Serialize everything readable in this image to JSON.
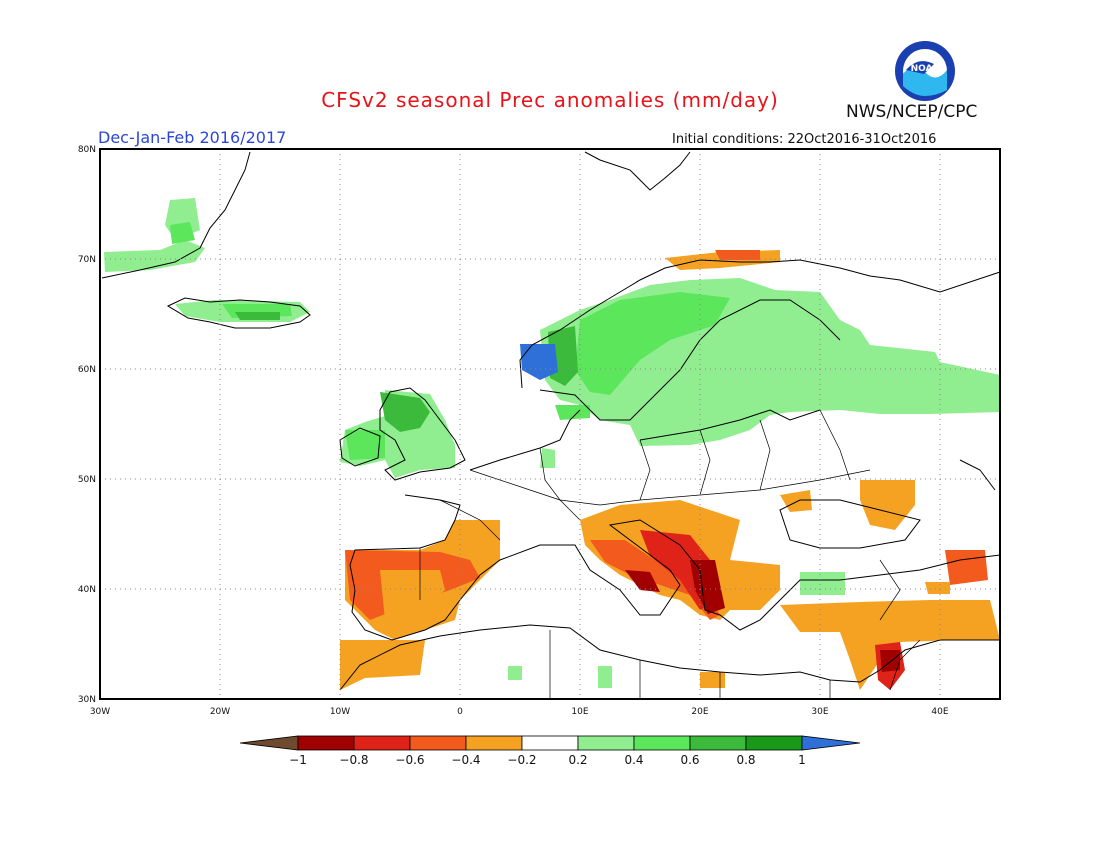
{
  "header": {
    "title": "CFSv2 seasonal Prec anomalies (mm/day)",
    "organization": "NWS/NCEP/CPC",
    "logo_text": "NOAA",
    "period": "Dec-Jan-Feb 2016/2017",
    "initial_conditions": "Initial conditions: 22Oct2016-31Oct2016"
  },
  "map": {
    "projection": "latitude-longitude",
    "lon_range": [
      -30,
      45
    ],
    "lat_range": [
      30,
      80
    ],
    "lat_labels": [
      "30N",
      "40N",
      "50N",
      "60N",
      "70N",
      "80N"
    ],
    "lon_labels": [
      "30W",
      "20W",
      "10W",
      "0",
      "10E",
      "20E",
      "30E",
      "40E"
    ],
    "grid": "dotted",
    "anomaly_regions": [
      {
        "name": "Greenland (east coast)",
        "category": "0.2 to 0.4"
      },
      {
        "name": "Iceland",
        "category": "0.4 to 0.6"
      },
      {
        "name": "Western Norway coast",
        "category": "0.8 to 1"
      },
      {
        "name": "Norway / Sweden",
        "category": "0.4 to 0.6"
      },
      {
        "name": "Finland / NW Russia",
        "category": "0.2 to 0.4"
      },
      {
        "name": "Scotland / Ireland",
        "category": "0.6 to 0.8"
      },
      {
        "name": "Baltic / Poland coast",
        "category": "0.2 to 0.4"
      },
      {
        "name": "Iberian Peninsula",
        "category": "-0.6 to -0.4"
      },
      {
        "name": "Italy / Balkans",
        "category": "-0.8 to -0.6"
      },
      {
        "name": "Greece / Aegean",
        "category": "-0.8 to -0.6"
      },
      {
        "name": "Turkey / E. Mediterranean",
        "category": "-0.4 to -0.2"
      },
      {
        "name": "Morocco",
        "category": "-0.4 to -0.2"
      }
    ]
  },
  "colorbar": {
    "tick_labels": [
      "-1",
      "-0.8",
      "-0.6",
      "-0.4",
      "-0.2",
      "0.2",
      "0.4",
      "0.6",
      "0.8",
      "1"
    ],
    "colors": [
      "#6e4b2f",
      "#a00000",
      "#e02318",
      "#f25a1e",
      "#f5a223",
      "#ffffff",
      "#90ee90",
      "#5ce65c",
      "#3cba3c",
      "#18991a",
      "#2f6fd8"
    ]
  }
}
